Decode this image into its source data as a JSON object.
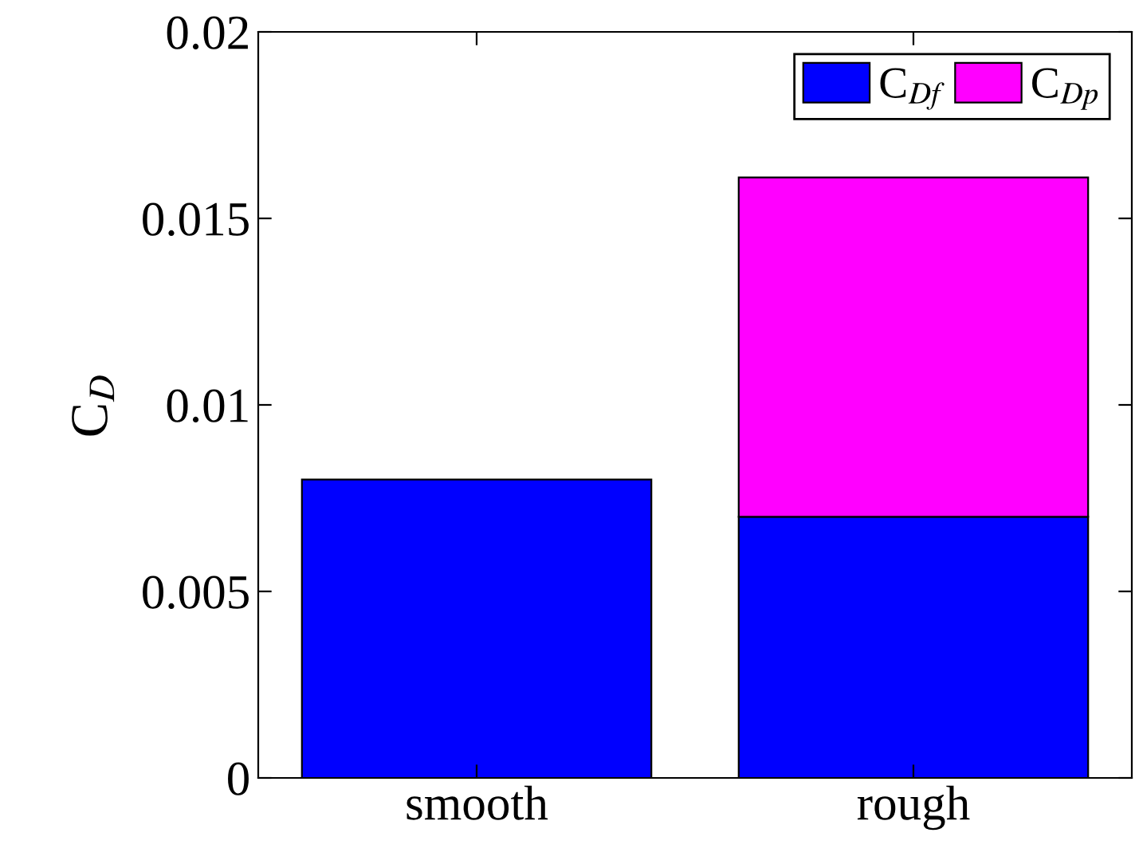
{
  "chart_data": {
    "type": "bar",
    "stacked": true,
    "ylabel": "C$_{D}$",
    "categories": [
      "smooth",
      "rough"
    ],
    "series": [
      {
        "name": "C$_{Df}$",
        "color": "#0000ff",
        "values": [
          0.008,
          0.007
        ]
      },
      {
        "name": "C$_{Dp}$",
        "color": "#ff00ff",
        "values": [
          null,
          0.0091
        ]
      }
    ],
    "ylim": [
      0,
      0.02
    ],
    "yticks": [
      0,
      0.005,
      0.01,
      0.015,
      0.02
    ],
    "grid": false,
    "legend": "top right"
  }
}
